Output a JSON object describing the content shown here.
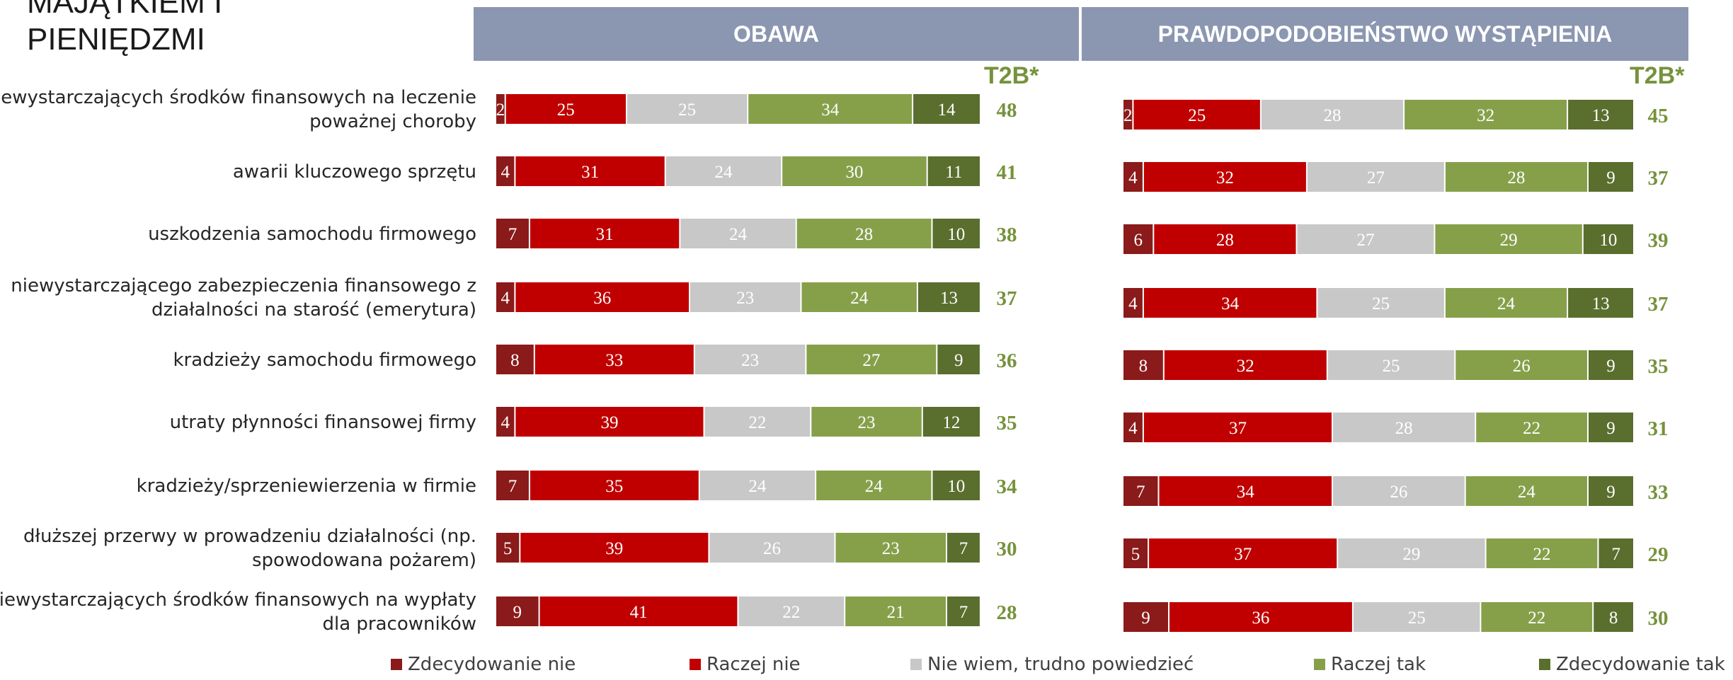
{
  "title": "MAJĄTKIEM I\nPIENIĘDZMI",
  "chart_data": {
    "type": "bar",
    "orientation": "horizontal",
    "stacked": true,
    "grid": false,
    "legend_position": "bottom",
    "categories": [
      "niewystarczających środków finansowych na leczenie poważnej choroby",
      "awarii kluczowego sprzętu",
      "uszkodzenia samochodu firmowego",
      "niewystarczającego zabezpieczenia finansowego z działalności na starość (emerytura)",
      "kradzieży samochodu firmowego",
      "utraty płynności finansowej firmy",
      "kradzieży/sprzeniewierzenia w firmie",
      "dłuższej przerwy w prowadzeniu działalności (np. spowodowana pożarem)",
      "niewystarczających środków finansowych na wypłaty dla pracowników"
    ],
    "legend": [
      {
        "name": "Zdecydowanie nie",
        "color": "#8b1a1a"
      },
      {
        "name": "Raczej nie",
        "color": "#c00000"
      },
      {
        "name": "Nie wiem, trudno powiedzieć",
        "color": "#c8c8c8"
      },
      {
        "name": "Raczej tak",
        "color": "#86a04a"
      },
      {
        "name": "Zdecydowanie tak",
        "color": "#5a6e2e"
      }
    ],
    "panels": [
      {
        "header": "OBAWA",
        "total_label": "T2B*",
        "values": [
          [
            2,
            25,
            25,
            34,
            14
          ],
          [
            4,
            31,
            24,
            30,
            11
          ],
          [
            7,
            31,
            24,
            28,
            10
          ],
          [
            4,
            36,
            23,
            24,
            13
          ],
          [
            8,
            33,
            23,
            27,
            9
          ],
          [
            4,
            39,
            22,
            23,
            12
          ],
          [
            7,
            35,
            24,
            24,
            10
          ],
          [
            5,
            39,
            26,
            23,
            7
          ],
          [
            9,
            41,
            22,
            21,
            7
          ]
        ],
        "t2b": [
          48,
          41,
          38,
          37,
          36,
          35,
          34,
          30,
          28
        ]
      },
      {
        "header": "PRAWDOPODOBIEŃSTWO WYSTĄPIENIA",
        "total_label": "T2B*",
        "values": [
          [
            2,
            25,
            28,
            32,
            13
          ],
          [
            4,
            32,
            27,
            28,
            9
          ],
          [
            6,
            28,
            27,
            29,
            10
          ],
          [
            4,
            34,
            25,
            24,
            13
          ],
          [
            8,
            32,
            25,
            26,
            9
          ],
          [
            4,
            37,
            28,
            22,
            9
          ],
          [
            7,
            34,
            26,
            24,
            9
          ],
          [
            5,
            37,
            29,
            22,
            7
          ],
          [
            9,
            36,
            25,
            22,
            8
          ]
        ],
        "t2b": [
          45,
          37,
          39,
          37,
          35,
          31,
          33,
          29,
          30
        ]
      }
    ]
  }
}
